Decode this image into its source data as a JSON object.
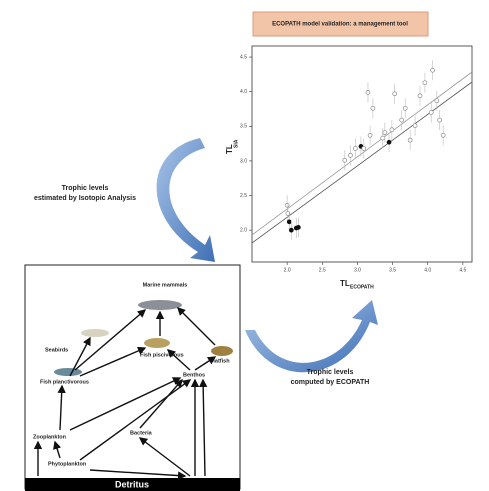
{
  "chart_data": {
    "type": "scatter",
    "x_label": "TL",
    "x_label_sub": "ECOPATH",
    "y_label": "TL",
    "y_label_sub": "SIA",
    "x": [
      2.0,
      2.01,
      2.03,
      2.06,
      2.13,
      2.16,
      2.82,
      2.9,
      2.97,
      3.05,
      3.09,
      3.18,
      3.22,
      3.15,
      3.36,
      3.39,
      3.45,
      3.49,
      3.53,
      3.63,
      3.68,
      3.75,
      3.82,
      3.89,
      3.96,
      4.05,
      4.07,
      4.13,
      4.17,
      4.22
    ],
    "values": [
      2.36,
      2.24,
      2.12,
      2.0,
      2.03,
      2.04,
      3.01,
      3.08,
      3.18,
      3.21,
      3.18,
      3.37,
      3.76,
      3.99,
      3.33,
      3.41,
      3.27,
      3.45,
      3.97,
      3.59,
      3.76,
      3.3,
      3.51,
      3.94,
      4.13,
      3.7,
      4.31,
      3.87,
      3.59,
      3.37
    ],
    "colors": [
      "#888",
      "#888",
      "#111",
      "#111",
      "#111",
      "#111",
      "#888",
      "#888",
      "#888",
      "#111",
      "#888",
      "#888",
      "#888",
      "#888",
      "#888",
      "#888",
      "#111",
      "#888",
      "#888",
      "#888",
      "#888",
      "#888",
      "#888",
      "#888",
      "#888",
      "#888",
      "#888",
      "#888",
      "#888",
      "#888"
    ],
    "xlim": [
      1.5,
      4.63
    ],
    "ylim": [
      1.54,
      4.66
    ],
    "xticks": [
      {
        "value": 2,
        "label": "2.0"
      },
      {
        "value": 2.5,
        "label": "2.5"
      },
      {
        "value": 3,
        "label": "3.0"
      },
      {
        "value": 3.5,
        "label": "3.5"
      },
      {
        "value": 4,
        "label": "4.0"
      },
      {
        "value": 4.5,
        "label": "4.5"
      }
    ],
    "yticks": [
      {
        "value": 2,
        "label": "2.0"
      },
      {
        "value": 2.5,
        "label": "2.5"
      },
      {
        "value": 3,
        "label": "3.0"
      },
      {
        "value": 3.5,
        "label": "3.5"
      },
      {
        "value": 4,
        "label": "4.0"
      },
      {
        "value": 4.5,
        "label": "4.5"
      }
    ]
  },
  "header": {
    "title": "ECOPATH model validation: a management tool"
  },
  "captions": {
    "isotopic": [
      "Trophic levels",
      "estimated by Isotopic Analysis"
    ],
    "ecopath": [
      "Trophic levels",
      "computed by ECOPATH"
    ]
  },
  "nodes": [
    "Marine mammals",
    "Seabirds",
    "Fish piscivorous",
    "Flatfish",
    "Fish planctivorous",
    "Benthos",
    "Zooplankton",
    "Bacteria",
    "Phytoplankton",
    "Detritus"
  ]
}
